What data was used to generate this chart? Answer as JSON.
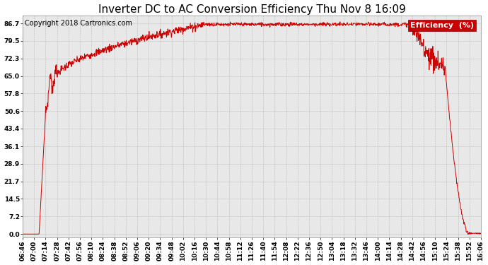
{
  "title": "Inverter DC to AC Conversion Efficiency Thu Nov 8 16:09",
  "copyright": "Copyright 2018 Cartronics.com",
  "legend_label": "Efficiency  (%)",
  "legend_bg": "#cc0000",
  "legend_fg": "#ffffff",
  "line_color": "#cc0000",
  "bg_color": "#ffffff",
  "plot_bg_color": "#e8e8e8",
  "grid_color": "#bbbbbb",
  "yticks": [
    0.0,
    7.2,
    14.5,
    21.7,
    28.9,
    36.1,
    43.4,
    50.6,
    57.8,
    65.0,
    72.3,
    79.5,
    86.7
  ],
  "xtick_labels": [
    "06:46",
    "07:00",
    "07:14",
    "07:28",
    "07:42",
    "07:56",
    "08:10",
    "08:24",
    "08:38",
    "08:52",
    "09:06",
    "09:20",
    "09:34",
    "09:48",
    "10:02",
    "10:16",
    "10:30",
    "10:44",
    "10:58",
    "11:12",
    "11:26",
    "11:40",
    "11:54",
    "12:08",
    "12:22",
    "12:36",
    "12:50",
    "13:04",
    "13:18",
    "13:32",
    "13:46",
    "14:00",
    "14:14",
    "14:28",
    "14:42",
    "14:56",
    "15:10",
    "15:24",
    "15:38",
    "15:52",
    "16:06"
  ],
  "ymin": 0.0,
  "ymax": 86.7,
  "title_fontsize": 11,
  "copyright_fontsize": 7,
  "tick_fontsize": 6.5,
  "legend_fontsize": 8
}
